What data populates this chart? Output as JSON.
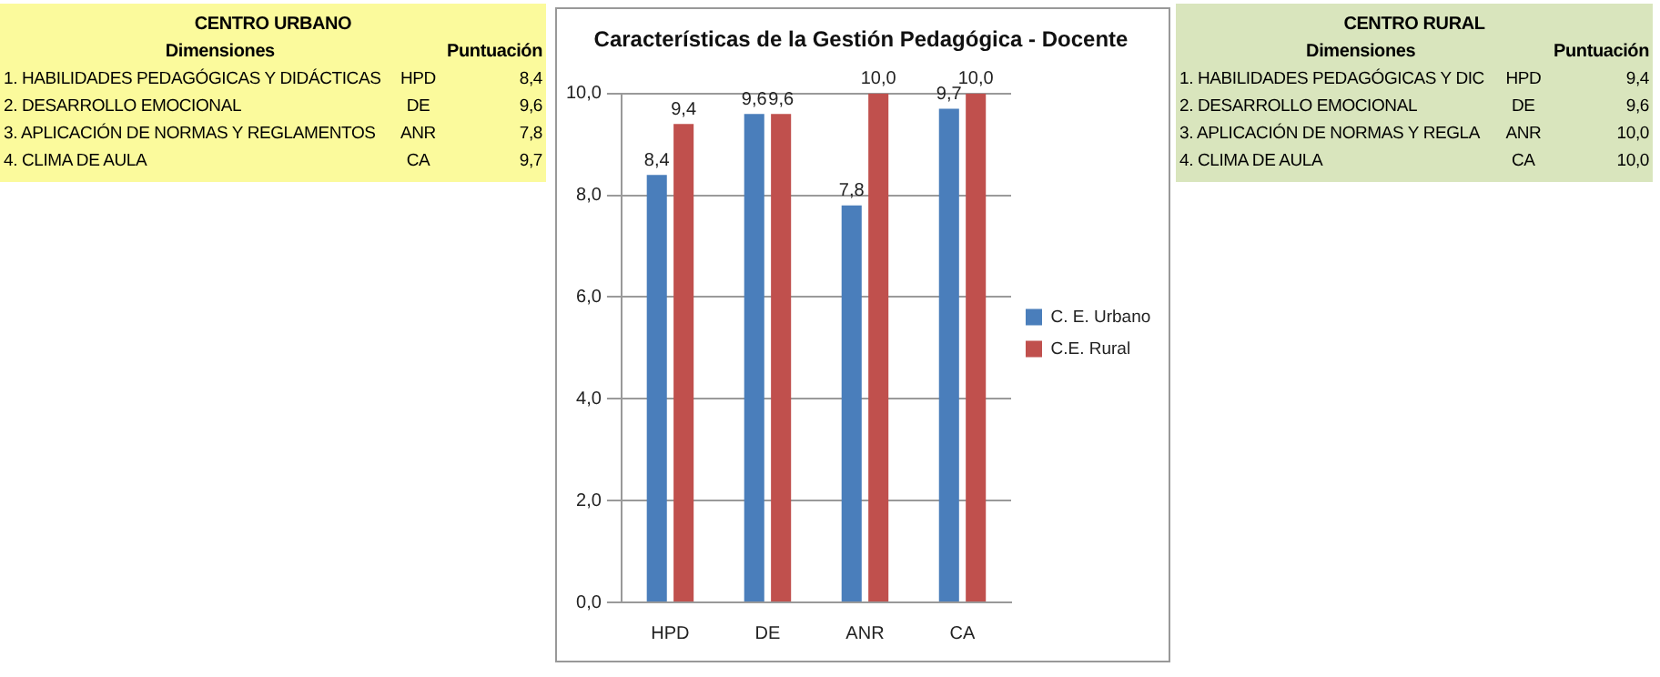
{
  "chart_data": {
    "type": "bar",
    "title": "Características de la Gestión Pedagógica - Docente",
    "categories": [
      "HPD",
      "DE",
      "ANR",
      "CA"
    ],
    "series": [
      {
        "name": "C. E. Urbano",
        "color": "#4a7ebb",
        "values": [
          8.4,
          9.6,
          7.8,
          9.7
        ],
        "value_labels": [
          "8,4",
          "9,6",
          "7,8",
          "9,7"
        ]
      },
      {
        "name": "C.E. Rural",
        "color": "#c0504d",
        "values": [
          9.4,
          9.6,
          10.0,
          10.0
        ],
        "value_labels": [
          "9,4",
          "9,6",
          "10,0",
          "10,0"
        ]
      }
    ],
    "ylim": [
      0,
      10
    ],
    "yticks": [
      {
        "value": 0,
        "label": "0,0"
      },
      {
        "value": 2,
        "label": "2,0"
      },
      {
        "value": 4,
        "label": "4,0"
      },
      {
        "value": 6,
        "label": "6,0"
      },
      {
        "value": 8,
        "label": "8,0"
      },
      {
        "value": 10,
        "label": "10,0"
      }
    ],
    "grid": "y",
    "legend": "right",
    "annotations": [
      "CENTRO URBANO",
      "Dimensiones",
      "Puntuación",
      "1. HABILIDADES PEDAGÓGICAS Y DIDÁCTICAS",
      "HPD",
      "8,4",
      "2. DESARROLLO EMOCIONAL",
      "DE",
      "9,6",
      "3. APLICACIÓN DE NORMAS Y REGLAMENTOS",
      "ANR",
      "7,8",
      "4. CLIMA DE AULA",
      "CA",
      "9,7",
      "CENTRO RURAL",
      "Dimensiones",
      "Puntuación",
      "1. HABILIDADES PEDAGÓGICAS Y DIC",
      "HPD",
      "9,4",
      "2. DESARROLLO EMOCIONAL",
      "DE",
      "9,6",
      "3. APLICACIÓN DE NORMAS Y REGLA",
      "ANR",
      "10,0",
      "4. CLIMA DE AULA",
      "CA",
      "10,0"
    ]
  }
}
